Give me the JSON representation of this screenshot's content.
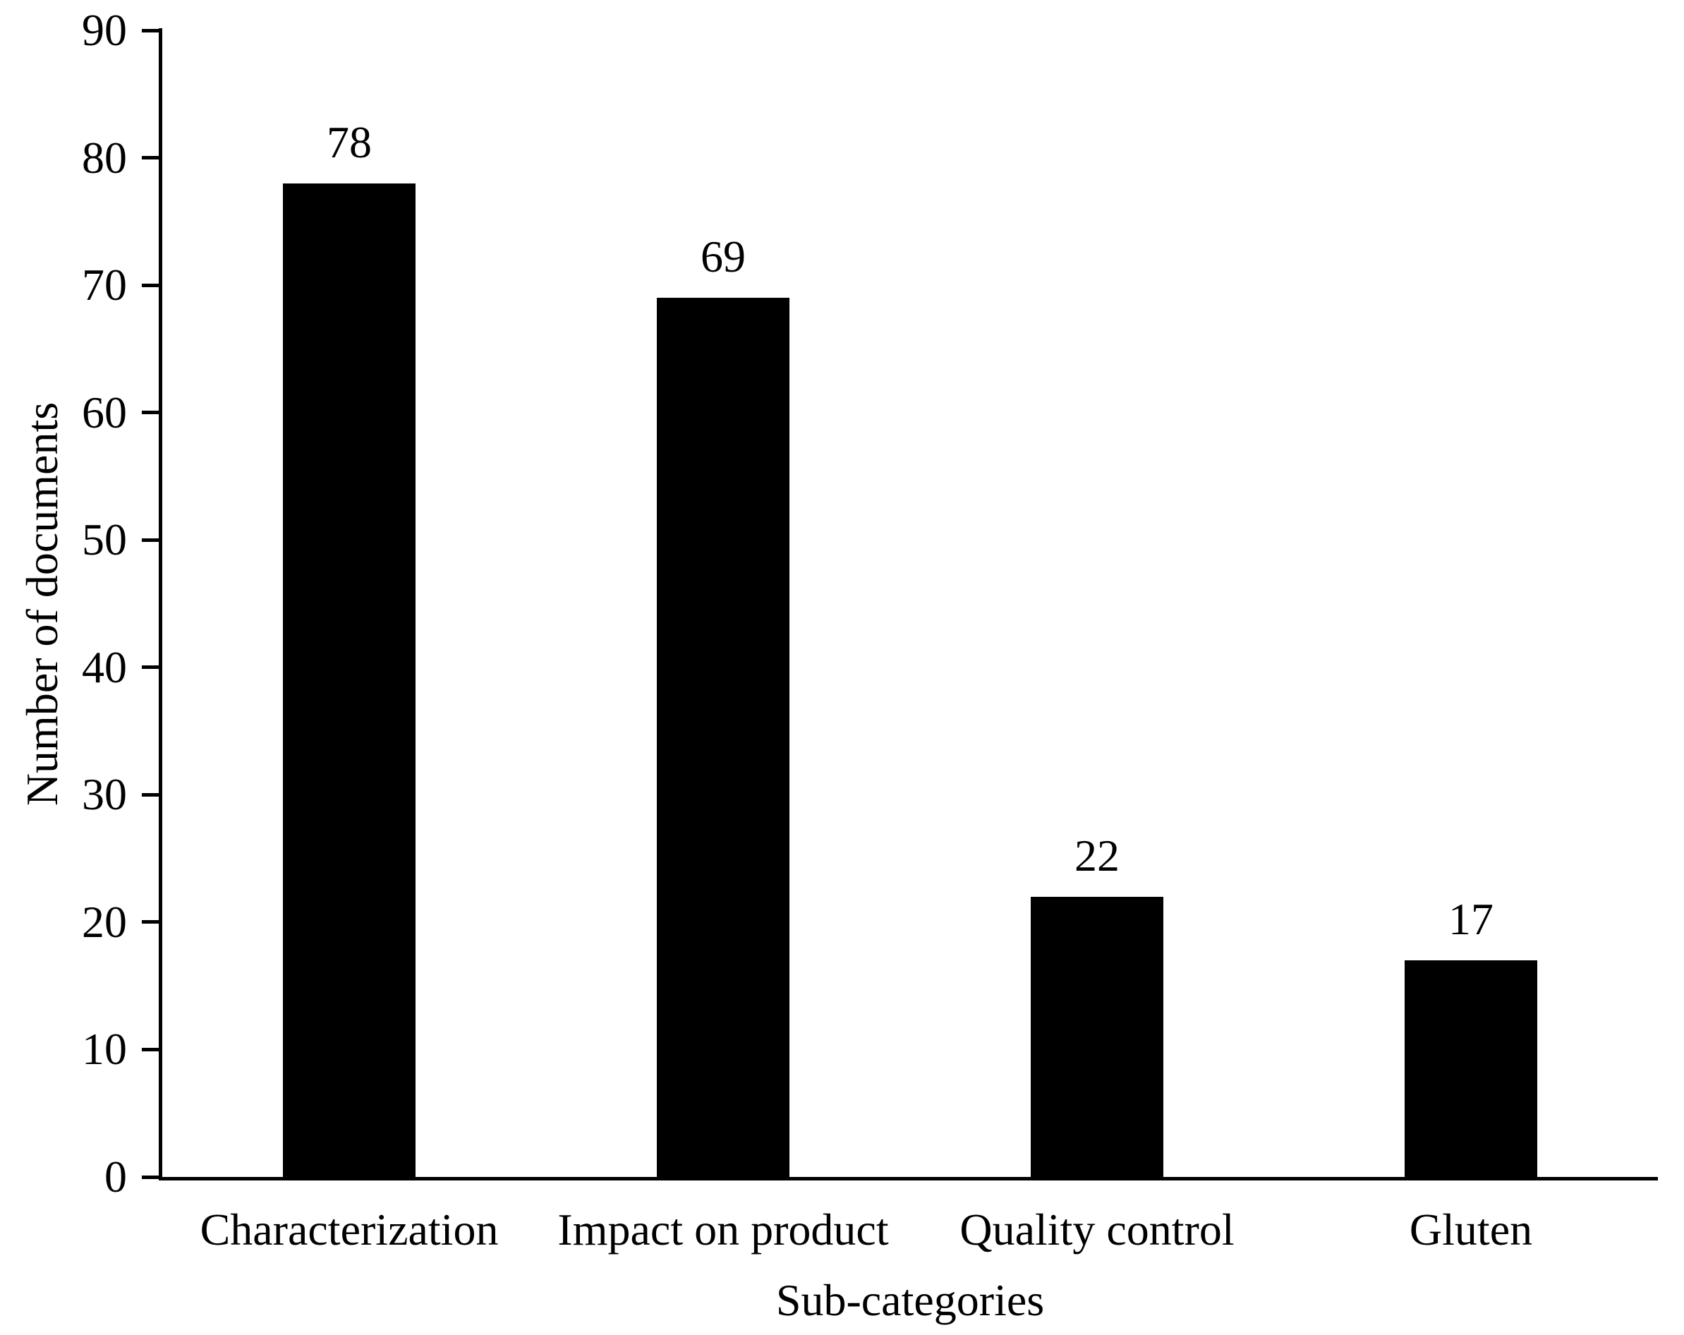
{
  "chart_data": {
    "type": "bar",
    "title": "",
    "categories": [
      "Characterization",
      "Impact on product",
      "Quality control",
      "Gluten"
    ],
    "values": [
      78,
      69,
      22,
      17
    ],
    "xlabel": "Sub-categories",
    "ylabel": "Number of documents",
    "ylim": [
      0,
      90
    ],
    "yticks": [
      0,
      10,
      20,
      30,
      40,
      50,
      60,
      70,
      80,
      90
    ],
    "show_value_labels": true,
    "grid": false,
    "legend": false,
    "bar_color": "#000000",
    "axis_color": "#000000",
    "text_color": "#000000",
    "background_color": "#ffffff"
  }
}
